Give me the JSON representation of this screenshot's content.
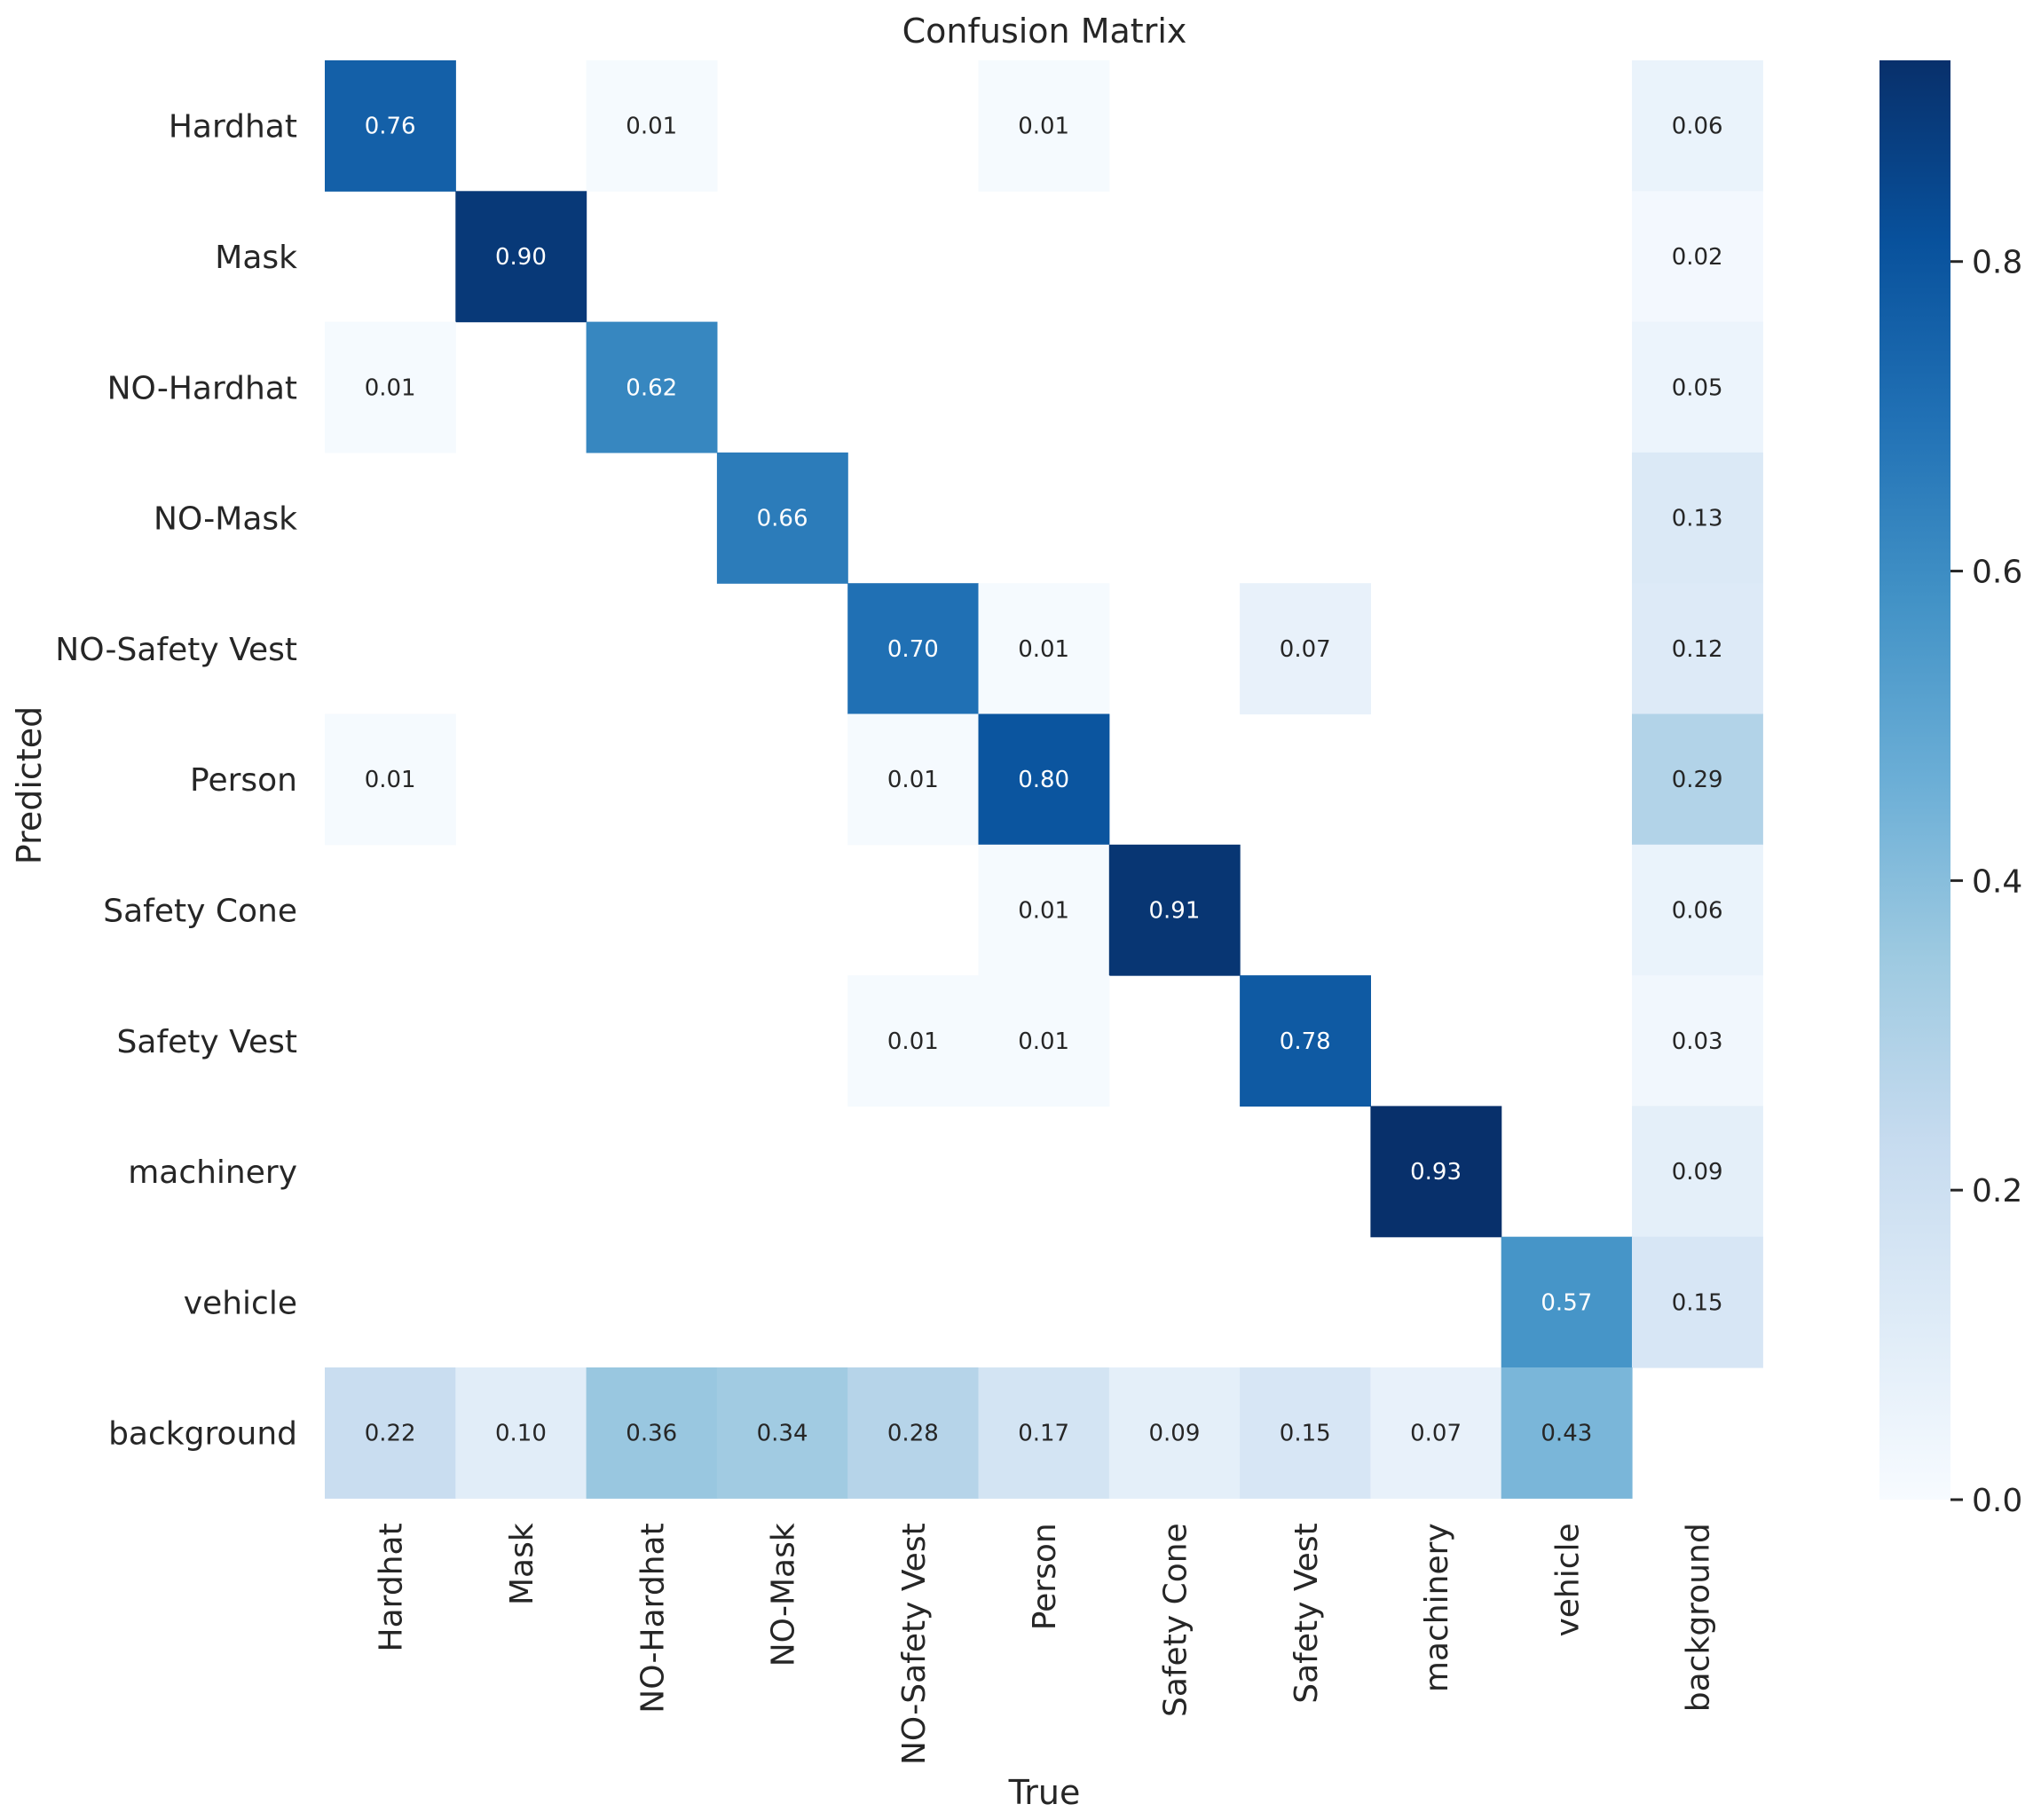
{
  "chart_data": {
    "type": "heatmap",
    "title": "Confusion Matrix",
    "xlabel": "True",
    "ylabel": "Predicted",
    "row_labels": [
      "Hardhat",
      "Mask",
      "NO-Hardhat",
      "NO-Mask",
      "NO-Safety Vest",
      "Person",
      "Safety Cone",
      "Safety Vest",
      "machinery",
      "vehicle",
      "background"
    ],
    "col_labels": [
      "Hardhat",
      "Mask",
      "NO-Hardhat",
      "NO-Mask",
      "NO-Safety Vest",
      "Person",
      "Safety Cone",
      "Safety Vest",
      "machinery",
      "vehicle",
      "background"
    ],
    "values": [
      [
        0.76,
        null,
        0.01,
        null,
        null,
        0.01,
        null,
        null,
        null,
        null,
        0.06
      ],
      [
        null,
        0.9,
        null,
        null,
        null,
        null,
        null,
        null,
        null,
        null,
        0.02
      ],
      [
        0.01,
        null,
        0.62,
        null,
        null,
        null,
        null,
        null,
        null,
        null,
        0.05
      ],
      [
        null,
        null,
        null,
        0.66,
        null,
        null,
        null,
        null,
        null,
        null,
        0.13
      ],
      [
        null,
        null,
        null,
        null,
        0.7,
        0.01,
        null,
        0.07,
        null,
        null,
        0.12
      ],
      [
        0.01,
        null,
        null,
        null,
        0.01,
        0.8,
        null,
        null,
        null,
        null,
        0.29
      ],
      [
        null,
        null,
        null,
        null,
        null,
        0.01,
        0.91,
        null,
        null,
        null,
        0.06
      ],
      [
        null,
        null,
        null,
        null,
        0.01,
        0.01,
        null,
        0.78,
        null,
        null,
        0.03
      ],
      [
        null,
        null,
        null,
        null,
        null,
        null,
        null,
        null,
        0.93,
        null,
        0.09
      ],
      [
        null,
        null,
        null,
        null,
        null,
        null,
        null,
        null,
        null,
        0.57,
        0.15
      ],
      [
        0.22,
        0.1,
        0.36,
        0.34,
        0.28,
        0.17,
        0.09,
        0.15,
        0.07,
        0.43,
        null
      ]
    ],
    "colorbar": {
      "vmin": 0.0,
      "vmax": 0.93,
      "ticks": [
        0.0,
        0.2,
        0.4,
        0.6,
        0.8
      ],
      "tick_labels": [
        "0.0",
        "0.2",
        "0.4",
        "0.6",
        "0.8"
      ]
    },
    "colormap": [
      "#f7fbff",
      "#deebf7",
      "#c6dbef",
      "#9ecae1",
      "#6baed6",
      "#4292c6",
      "#2171b5",
      "#08519c",
      "#08306b"
    ]
  }
}
